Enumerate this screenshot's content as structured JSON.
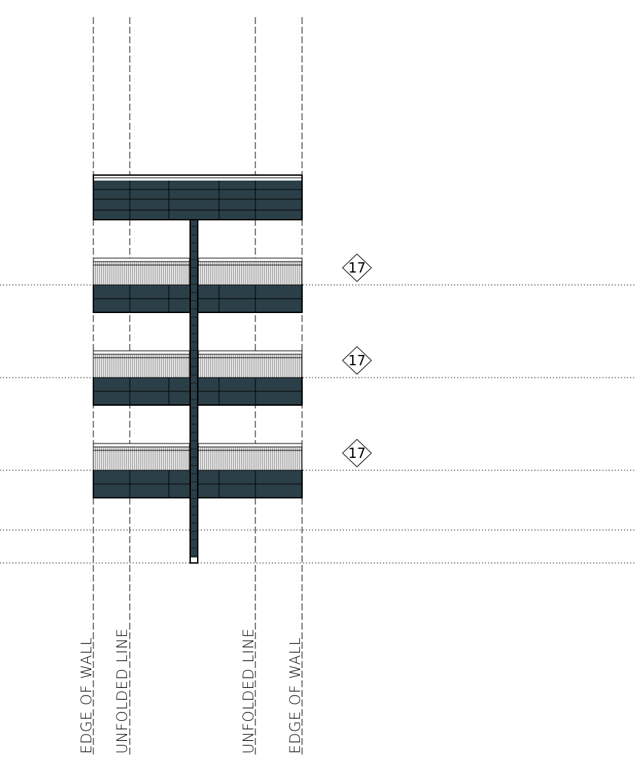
{
  "colors": {
    "slab": "#2b3f48",
    "ink": "#000000",
    "background": "#ffffff"
  },
  "reference_lines": [
    {
      "id": "edge-of-wall-left",
      "label": "EDGE  OF  WALL"
    },
    {
      "id": "unfolded-line-left",
      "label": "UNFOLDED  LINE"
    },
    {
      "id": "unfolded-line-right",
      "label": "UNFOLDED  LINE"
    },
    {
      "id": "edge-of-wall-right",
      "label": "EDGE  OF  WALL"
    }
  ],
  "tags": [
    {
      "id": "tag-1",
      "text": "17",
      "shape": "diamond"
    },
    {
      "id": "tag-2",
      "text": "17",
      "shape": "diamond"
    },
    {
      "id": "tag-3",
      "text": "17",
      "shape": "diamond"
    }
  ]
}
